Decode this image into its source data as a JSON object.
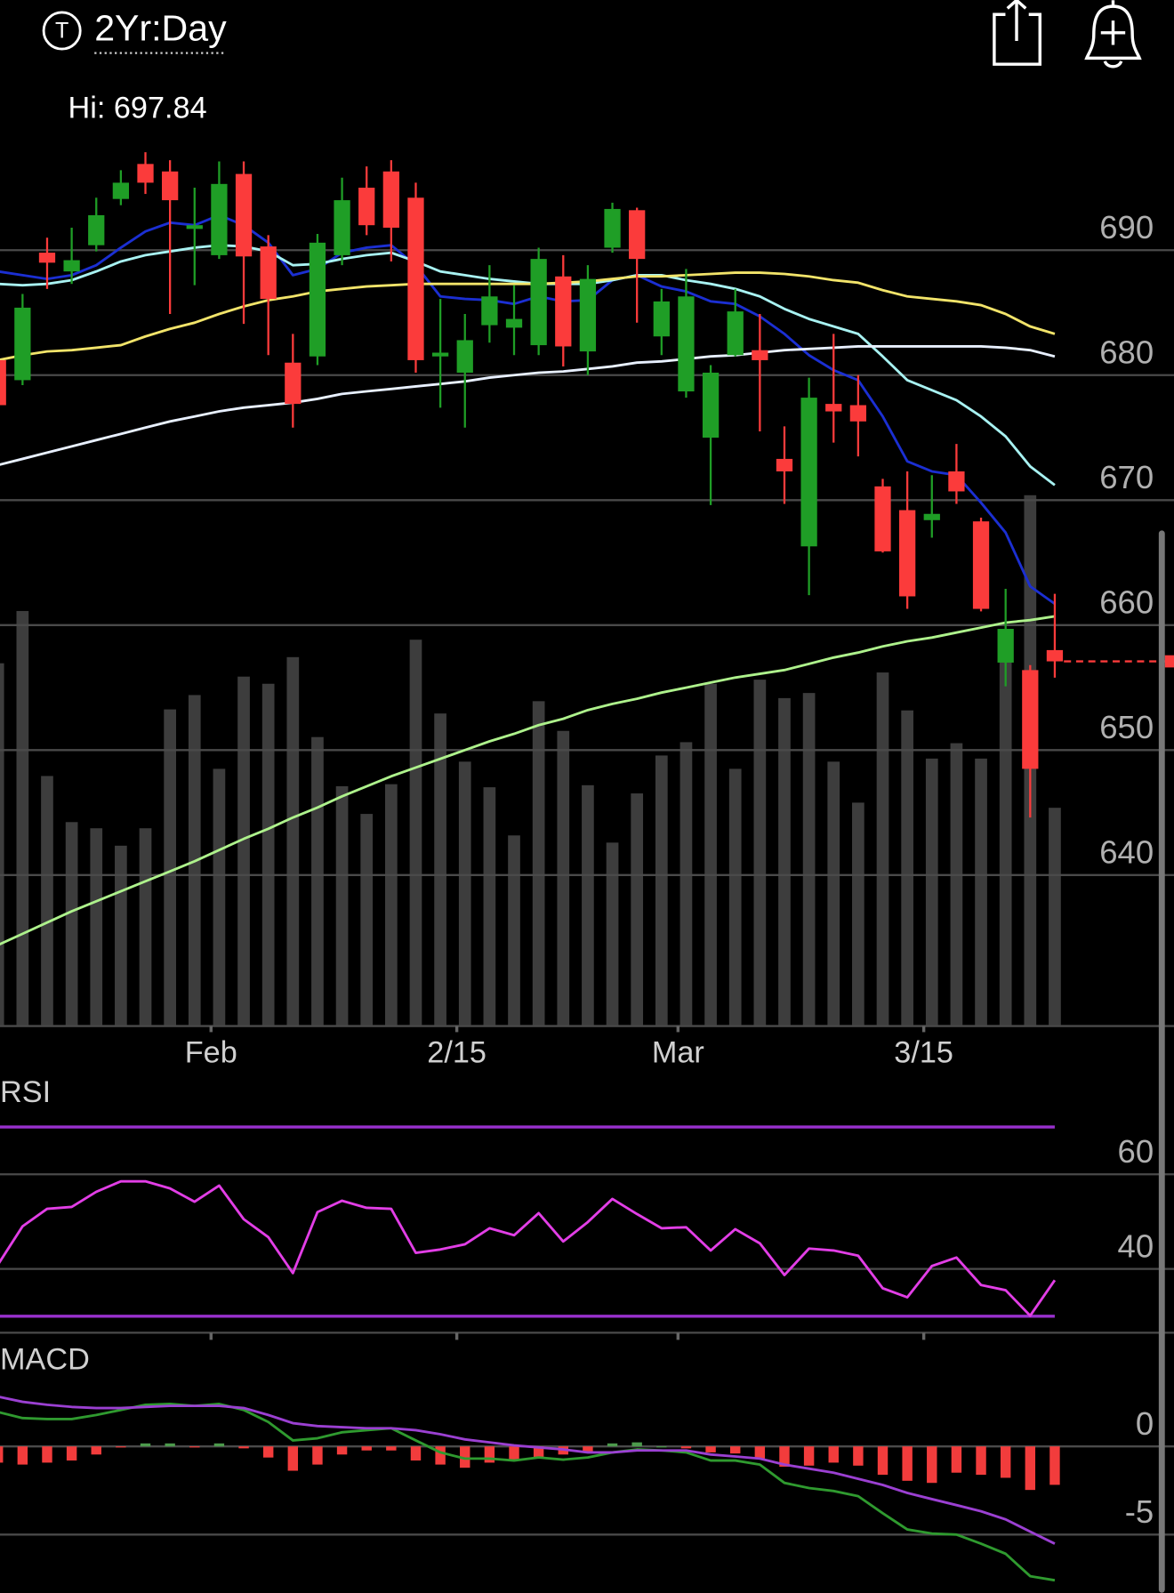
{
  "header": {
    "icon": "T",
    "period": "2Yr:Day",
    "hi": "Hi: 697.84"
  },
  "chart_data": [
    {
      "type": "candlestick",
      "categories": [
        null,
        null,
        null,
        null,
        null,
        null,
        null,
        null,
        null,
        "Feb",
        null,
        null,
        null,
        null,
        null,
        null,
        null,
        null,
        null,
        "2/15",
        null,
        null,
        null,
        null,
        null,
        null,
        null,
        null,
        "Mar",
        null,
        null,
        null,
        null,
        null,
        null,
        null,
        null,
        null,
        "3/15",
        null,
        null,
        null,
        null,
        null
      ],
      "open": [
        681.2,
        679.6,
        689.8,
        688.3,
        690.4,
        694.1,
        696.9,
        696.3,
        691.7,
        689.6,
        696.1,
        690.3,
        681.0,
        681.5,
        689.6,
        695.0,
        696.3,
        694.2,
        681.5,
        680.2,
        684.0,
        683.8,
        682.4,
        687.9,
        681.9,
        690.2,
        693.2,
        683.1,
        678.7,
        675.0,
        681.6,
        682.0,
        673.3,
        666.3,
        677.7,
        677.6,
        671.1,
        669.2,
        668.4,
        672.3,
        668.3,
        657.0,
        656.4,
        658.0
      ],
      "high": [
        682.0,
        686.5,
        691.0,
        691.8,
        694.2,
        696.4,
        697.84,
        697.2,
        695.0,
        697.1,
        697.1,
        691.2,
        683.3,
        691.3,
        695.8,
        696.7,
        697.2,
        695.4,
        686.1,
        684.9,
        688.8,
        687.2,
        690.2,
        689.6,
        688.8,
        693.8,
        693.4,
        686.9,
        688.5,
        680.8,
        686.9,
        684.9,
        675.9,
        679.8,
        683.3,
        680.0,
        671.7,
        672.3,
        672.0,
        674.5,
        668.6,
        662.9,
        656.8,
        662.5
      ],
      "low": [
        677.3,
        679.2,
        686.9,
        687.3,
        689.9,
        693.6,
        694.5,
        684.9,
        687.2,
        689.3,
        684.1,
        681.6,
        675.8,
        680.8,
        688.8,
        691.2,
        689.1,
        680.2,
        677.4,
        675.8,
        682.6,
        681.6,
        681.6,
        680.7,
        680.0,
        689.8,
        684.2,
        681.6,
        678.2,
        669.6,
        681.5,
        675.5,
        669.7,
        662.4,
        674.6,
        673.5,
        665.8,
        661.3,
        667.0,
        669.7,
        661.1,
        655.1,
        644.6,
        655.8
      ],
      "close": [
        677.6,
        685.4,
        689.0,
        689.2,
        692.8,
        695.4,
        695.4,
        694.0,
        692.0,
        695.3,
        689.5,
        686.1,
        677.7,
        690.6,
        694.0,
        692.0,
        691.8,
        681.2,
        681.8,
        682.8,
        686.3,
        684.5,
        689.3,
        682.3,
        687.7,
        693.3,
        689.3,
        685.9,
        686.3,
        680.2,
        685.1,
        681.2,
        672.3,
        678.2,
        677.1,
        676.3,
        665.9,
        662.3,
        668.9,
        670.7,
        661.3,
        659.7,
        648.5,
        657.1
      ],
      "up_color": "#1f9e26",
      "down_color": "#fb3b3b",
      "series": [
        {
          "color": "#1b2fd2",
          "values": [
            688.3,
            688.0,
            687.7,
            688.0,
            688.8,
            690.2,
            691.5,
            692.2,
            692.0,
            692.8,
            692.0,
            690.6,
            688.0,
            688.5,
            689.8,
            690.2,
            690.4,
            688.8,
            686.3,
            686.1,
            686.0,
            685.7,
            686.3,
            685.9,
            686.0,
            687.6,
            688.0,
            687.1,
            686.7,
            685.9,
            685.7,
            684.7,
            683.3,
            681.6,
            680.4,
            679.6,
            676.7,
            673.1,
            672.3,
            672.0,
            669.8,
            667.4,
            663.1,
            661.7
          ]
        },
        {
          "color": "#a8f2f2",
          "values": [
            687.3,
            687.2,
            687.3,
            687.6,
            688.3,
            689.1,
            689.6,
            689.9,
            690.2,
            690.4,
            690.3,
            689.9,
            688.8,
            688.9,
            689.3,
            689.6,
            689.8,
            689.1,
            688.3,
            688.0,
            687.7,
            687.5,
            687.3,
            687.3,
            687.3,
            687.6,
            688.0,
            688.0,
            687.6,
            687.3,
            686.9,
            686.3,
            685.3,
            684.5,
            683.9,
            683.3,
            681.5,
            679.6,
            678.8,
            678.0,
            676.7,
            675.1,
            672.7,
            671.2
          ]
        },
        {
          "color": "#f2e46a",
          "values": [
            681.2,
            681.6,
            681.9,
            682.0,
            682.2,
            682.4,
            683.1,
            683.7,
            684.2,
            684.9,
            685.5,
            686.0,
            686.3,
            686.7,
            686.9,
            687.1,
            687.2,
            687.3,
            687.3,
            687.3,
            687.3,
            687.3,
            687.3,
            687.4,
            687.5,
            687.7,
            687.9,
            687.9,
            688.0,
            688.1,
            688.2,
            688.2,
            688.1,
            687.9,
            687.6,
            687.4,
            686.8,
            686.3,
            686.1,
            685.9,
            685.6,
            684.9,
            683.9,
            683.3
          ]
        },
        {
          "color": "#e8f0ff",
          "values": [
            672.8,
            673.3,
            673.8,
            674.3,
            674.8,
            675.3,
            675.8,
            676.3,
            676.7,
            677.1,
            677.4,
            677.6,
            677.8,
            678.1,
            678.5,
            678.7,
            678.9,
            679.1,
            679.3,
            679.5,
            679.8,
            680.0,
            680.2,
            680.3,
            680.5,
            680.7,
            681.0,
            681.1,
            681.3,
            681.5,
            681.6,
            681.8,
            682.0,
            682.1,
            682.2,
            682.3,
            682.3,
            682.3,
            682.3,
            682.3,
            682.3,
            682.2,
            682.0,
            681.5
          ]
        },
        {
          "color": "#aef28c",
          "values": [
            634.4,
            635.3,
            636.2,
            637.1,
            637.9,
            638.7,
            639.5,
            640.3,
            641.1,
            642.0,
            642.9,
            643.7,
            644.6,
            645.4,
            646.3,
            647.1,
            647.9,
            648.6,
            649.3,
            650.0,
            650.7,
            651.3,
            652.0,
            652.5,
            653.2,
            653.7,
            654.1,
            654.6,
            655.0,
            655.4,
            655.8,
            656.1,
            656.4,
            656.9,
            657.4,
            657.8,
            658.3,
            658.7,
            659.0,
            659.4,
            659.8,
            660.2,
            660.4,
            660.7
          ]
        }
      ],
      "volume": {
        "color": "#3d3d3d",
        "axis": "y2",
        "values": [
          353,
          404,
          243,
          198,
          192,
          175,
          192,
          308,
          322,
          250,
          340,
          333,
          359,
          281,
          233,
          206,
          235,
          376,
          304,
          257,
          232,
          185,
          316,
          287,
          234,
          178,
          226,
          263,
          276,
          333,
          250,
          337,
          319,
          324,
          257,
          217,
          344,
          307,
          260,
          275,
          260,
          355,
          517,
          212
        ]
      },
      "y2lim": [
        0,
        1000
      ],
      "ylim": [
        628,
        710
      ],
      "yticks": [
        640,
        650,
        660,
        670,
        680,
        690
      ],
      "grid": true
    },
    {
      "type": "line",
      "title": "RSI",
      "series": [
        {
          "color": "#e23ee6",
          "values": [
            40.9,
            49.0,
            52.7,
            53.1,
            56.3,
            58.5,
            58.5,
            57.0,
            54.2,
            57.6,
            50.5,
            46.7,
            39.1,
            52.0,
            54.4,
            52.9,
            52.7,
            43.4,
            44.1,
            45.2,
            48.6,
            47.1,
            51.8,
            45.8,
            49.9,
            54.8,
            51.6,
            48.6,
            48.8,
            43.9,
            48.4,
            45.4,
            38.7,
            44.3,
            43.9,
            42.8,
            35.9,
            34.0,
            40.6,
            42.4,
            36.6,
            35.5,
            30.1,
            37.6
          ]
        }
      ],
      "reference_lines": {
        "color": "#9830cc",
        "values": [
          70,
          30
        ]
      },
      "ylim": [
        26.5,
        80.6
      ],
      "yticks": [
        40,
        60
      ],
      "grid": true
    },
    {
      "type": "macd",
      "title": "MACD",
      "histogram": {
        "color": "#4c9a4c",
        "negative_color": "#f23c3c",
        "values": [
          -0.92,
          -1.03,
          -0.92,
          -0.8,
          -0.46,
          -0.06,
          0.17,
          0.17,
          -0.06,
          0.17,
          -0.11,
          -0.63,
          -1.38,
          -1.03,
          -0.46,
          -0.23,
          -0.23,
          -0.8,
          -1.03,
          -1.21,
          -0.92,
          -0.8,
          -0.63,
          -0.46,
          -0.34,
          0.17,
          0.23,
          0,
          -0.11,
          -0.34,
          -0.4,
          -0.69,
          -1.15,
          -1.09,
          -0.92,
          -1.09,
          -1.61,
          -1.95,
          -2.07,
          -1.49,
          -1.61,
          -1.78,
          -2.47,
          -2.18
        ]
      },
      "series": [
        {
          "color": "#2f9a2f",
          "values": [
            1.95,
            1.61,
            1.55,
            1.55,
            1.78,
            2.07,
            2.36,
            2.41,
            2.3,
            2.41,
            2.07,
            1.38,
            0.34,
            0.46,
            0.8,
            0.92,
            1.03,
            0.34,
            -0.34,
            -0.69,
            -0.69,
            -0.8,
            -0.63,
            -0.75,
            -0.63,
            -0.34,
            -0.17,
            -0.23,
            -0.34,
            -0.8,
            -0.8,
            -1.03,
            -2.07,
            -2.36,
            -2.53,
            -2.82,
            -3.79,
            -4.71,
            -4.94,
            -5.0,
            -5.52,
            -6.09,
            -7.36,
            -7.59
          ]
        },
        {
          "color": "#9b40d2",
          "values": [
            2.82,
            2.53,
            2.36,
            2.24,
            2.18,
            2.18,
            2.24,
            2.3,
            2.3,
            2.3,
            2.18,
            1.78,
            1.32,
            1.15,
            1.09,
            1.03,
            1.03,
            0.92,
            0.69,
            0.4,
            0.23,
            0.06,
            -0.06,
            -0.17,
            -0.34,
            -0.34,
            -0.23,
            -0.23,
            -0.23,
            -0.46,
            -0.57,
            -0.69,
            -1.03,
            -1.26,
            -1.49,
            -1.84,
            -2.18,
            -2.64,
            -2.99,
            -3.33,
            -3.68,
            -4.14,
            -4.83,
            -5.52
          ]
        }
      ],
      "ylim": [
        -8.3,
        6.1
      ],
      "yticks": [
        -5,
        0
      ],
      "grid": true
    }
  ]
}
